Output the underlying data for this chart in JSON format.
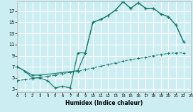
{
  "xlabel": "Humidex (Indice chaleur)",
  "bg_color": "#cceef2",
  "grid_color": "#ffffff",
  "line_color": "#1a7a6e",
  "xlim": [
    0,
    23
  ],
  "ylim": [
    2.5,
    18.8
  ],
  "xticks": [
    0,
    1,
    2,
    3,
    4,
    5,
    6,
    7,
    8,
    9,
    10,
    11,
    12,
    13,
    14,
    15,
    16,
    17,
    18,
    19,
    20,
    21,
    22,
    23
  ],
  "yticks": [
    3,
    5,
    7,
    9,
    11,
    13,
    15,
    17
  ],
  "line1_x": [
    0,
    1,
    2,
    3,
    4,
    5,
    6,
    7,
    8,
    9,
    10,
    11,
    12,
    13,
    14,
    15,
    16,
    17,
    18,
    19,
    20,
    21,
    22
  ],
  "line1_y": [
    7.0,
    6.2,
    5.0,
    5.0,
    4.5,
    3.2,
    3.5,
    3.2,
    9.5,
    9.5,
    15.0,
    15.5,
    16.2,
    17.2,
    18.7,
    17.5,
    18.5,
    17.5,
    17.5,
    16.5,
    16.0,
    14.5,
    11.5
  ],
  "line2_x": [
    0,
    2,
    3,
    8,
    9,
    10,
    11,
    12,
    13,
    14,
    15,
    16,
    17,
    18,
    19,
    20,
    21,
    22
  ],
  "line2_y": [
    7.0,
    5.5,
    5.5,
    6.3,
    9.5,
    15.0,
    15.5,
    16.2,
    17.2,
    18.7,
    17.5,
    18.5,
    17.5,
    17.5,
    16.5,
    16.0,
    14.5,
    11.5
  ],
  "line3_x": [
    0,
    1,
    2,
    3,
    4,
    5,
    6,
    7,
    8,
    9,
    10,
    11,
    12,
    13,
    14,
    15,
    16,
    17,
    18,
    19,
    20,
    21,
    22
  ],
  "line3_y": [
    4.5,
    4.7,
    4.9,
    5.1,
    5.3,
    5.5,
    5.8,
    6.0,
    6.2,
    6.5,
    6.8,
    7.1,
    7.4,
    7.7,
    8.0,
    8.3,
    8.5,
    8.7,
    9.0,
    9.2,
    9.4,
    9.5,
    9.5
  ]
}
